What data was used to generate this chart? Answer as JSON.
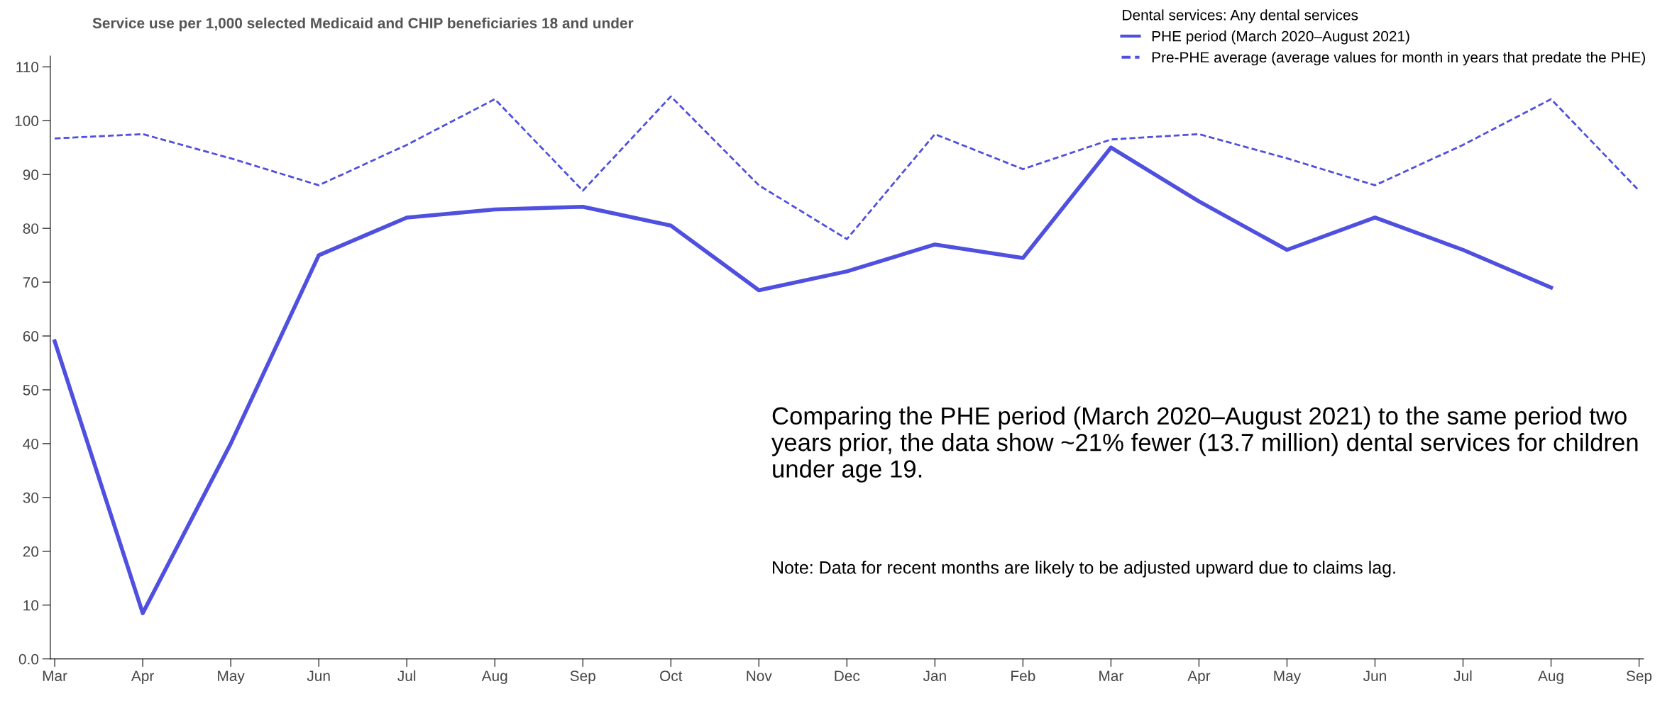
{
  "chart_data": {
    "type": "line",
    "title": "Service use per 1,000 selected Medicaid and CHIP beneficiaries 18 and under",
    "legend_title": "Dental services: Any dental services",
    "categories": [
      "Mar",
      "Apr",
      "May",
      "Jun",
      "Jul",
      "Aug",
      "Sep",
      "Oct",
      "Nov",
      "Dec",
      "Jan",
      "Feb",
      "Mar",
      "Apr",
      "May",
      "Jun",
      "Jul",
      "Aug",
      "Sep"
    ],
    "series": [
      {
        "name": "PHE period (March 2020–August 2021)",
        "color": "#4f4fe0",
        "line_style": "solid",
        "values": [
          59,
          8.5,
          40,
          75,
          82,
          83.5,
          84,
          80.5,
          68.5,
          72,
          77,
          74.5,
          95,
          85,
          76,
          82,
          76,
          69,
          null
        ]
      },
      {
        "name": "Pre-PHE average (average values for month in years that predate the PHE)",
        "color": "#4f4fe0",
        "line_style": "dashed",
        "values": [
          96.7,
          97.5,
          93,
          88,
          95.5,
          104,
          87,
          104.5,
          88,
          78,
          97.5,
          91,
          96.5,
          97.5,
          93,
          88,
          95.5,
          104,
          87
        ]
      }
    ],
    "ylim": [
      0,
      112
    ],
    "yticks": [
      {
        "value": 0,
        "label": "0.0"
      },
      10,
      20,
      30,
      40,
      50,
      60,
      70,
      80,
      90,
      100,
      110
    ],
    "grid": false,
    "legend": "top right",
    "marker": "none",
    "annotations": [
      "Comparing the PHE period (March 2020–August 2021) to the same period two years prior, the data show ~21% fewer (13.7 million) dental services for children under age 19.",
      "Note: Data for recent months are likely to be adjusted upward due to claims lag."
    ]
  }
}
